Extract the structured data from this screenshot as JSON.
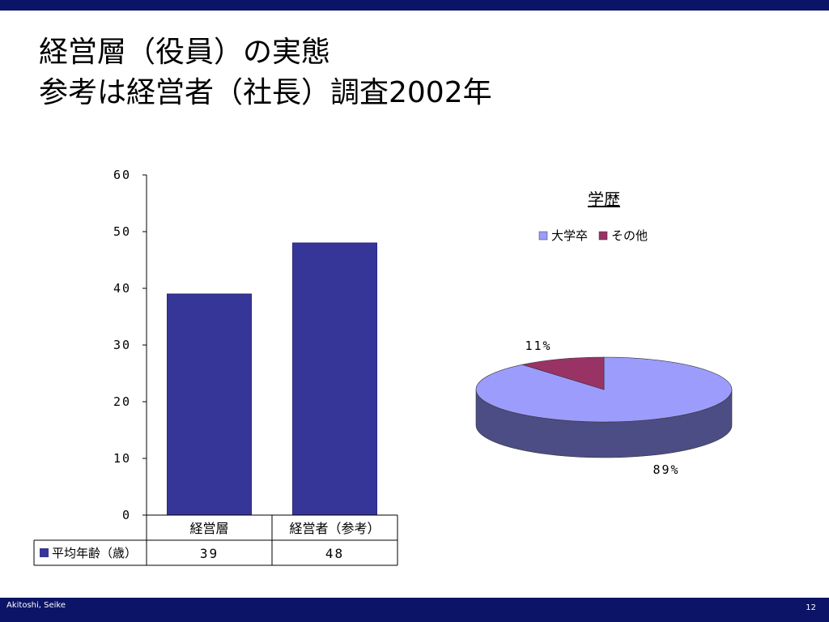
{
  "slide": {
    "title_line1": "経営層（役員）の実態",
    "title_line2": "参考は経営者（社長）調査2002年",
    "footer_author": "Akitoshi, Seike",
    "page_number": "12"
  },
  "colors": {
    "bar": "#363699",
    "bar_shade": "#2a2a7c",
    "pie_main": "#9c9cfc",
    "pie_main_side": "#4d4d85",
    "pie_other": "#993366",
    "pie_other_side": "#6b2347",
    "bars_border": "#0b1466"
  },
  "chart_data": [
    {
      "type": "bar",
      "categories": [
        "経営層",
        "経営者（参考）"
      ],
      "series": [
        {
          "name": "平均年齢（歳）",
          "values": [
            39,
            48
          ]
        }
      ],
      "y_ticks": [
        "0",
        "10",
        "20",
        "30",
        "40",
        "50",
        "60"
      ],
      "ylim": [
        0,
        60
      ],
      "data_table": {
        "row_label": "平均年齢（歳）",
        "values": [
          "39",
          "48"
        ]
      },
      "grid": false
    },
    {
      "type": "pie",
      "title": "学歴",
      "labels": [
        "大学卒",
        "その他"
      ],
      "values": [
        89,
        11
      ],
      "data_labels": [
        "89%",
        "11%"
      ],
      "legend_position": "top",
      "style": "3d"
    }
  ]
}
